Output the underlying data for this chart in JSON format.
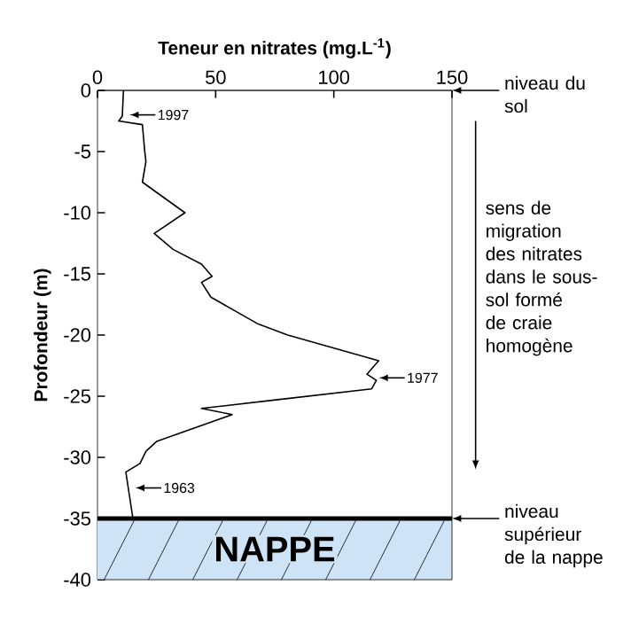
{
  "chart_data": {
    "type": "line",
    "xlabel": "Teneur en nitrates (mg.L$^{-1}$)",
    "ylabel": "Profondeur (m)",
    "xlim": [
      0,
      150
    ],
    "ylim": [
      -40,
      0
    ],
    "xticks": [
      0,
      50,
      100,
      150
    ],
    "yticks": [
      0,
      -5,
      -10,
      -15,
      -20,
      -25,
      -30,
      -35,
      -40
    ],
    "series": [
      {
        "color": "#000000",
        "x": [
          11,
          10.5,
          9,
          19,
          20,
          20.5,
          19,
          37,
          24,
          32,
          44,
          48.5,
          44,
          48,
          68,
          80.5,
          119,
          114,
          118,
          116,
          75.5,
          44,
          57,
          25,
          20.5,
          18,
          12,
          15
        ],
        "values": [
          0,
          -2.1,
          -2.5,
          -2.8,
          -5,
          -5.8,
          -7.5,
          -10,
          -11.7,
          -13,
          -14.2,
          -15.2,
          -15.7,
          -16.9,
          -19.1,
          -20,
          -22.1,
          -23.2,
          -23.7,
          -24.4,
          -25.3,
          -26,
          -26.5,
          -28.7,
          -29.5,
          -30.5,
          -31.2,
          -35
        ]
      }
    ],
    "marker": "none",
    "line_style": "solid",
    "grid": false,
    "bands": [
      {
        "axis": "y",
        "from": -40,
        "to": -35,
        "label": "NAPPE",
        "color": "#cfe3f7"
      }
    ],
    "ref_lines": [
      {
        "axis": "y",
        "value": 0,
        "label": "niveau du sol"
      },
      {
        "axis": "y",
        "value": -35,
        "label": "niveau supérieur de la nappe"
      }
    ],
    "annotations": [
      {
        "text": "1997",
        "x": 10.5,
        "y": -2
      },
      {
        "text": "1977",
        "x": 116,
        "y": -23.5
      },
      {
        "text": "1963",
        "x": 13,
        "y": -32.5
      },
      "sens de migration des nitrates dans le sous-sol formé de craie homogène"
    ]
  }
}
